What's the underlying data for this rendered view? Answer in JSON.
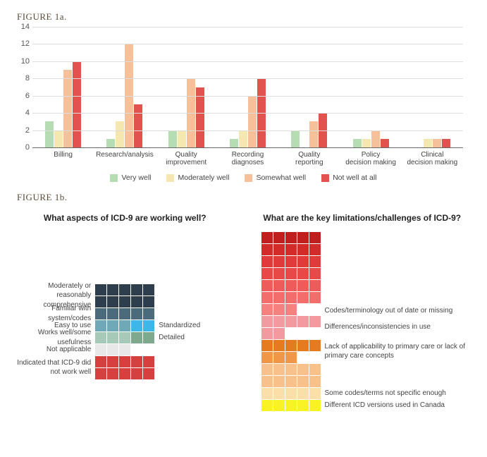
{
  "figure1a": {
    "title": "FIGURE 1a.",
    "type": "bar",
    "ylim": [
      0,
      14
    ],
    "ytick_step": 2,
    "grid_color": "#dddddd",
    "axis_color": "#666666",
    "label_fontsize": 10,
    "categories": [
      "Billing",
      "Research/analysis",
      "Quality improvement",
      "Recording diagnoses",
      "Quality reporting",
      "Policy decision making",
      "Clinical decision making"
    ],
    "series": [
      {
        "name": "Very well",
        "color": "#b6dcb3",
        "values": [
          3,
          1,
          2,
          1,
          2,
          1,
          0
        ]
      },
      {
        "name": "Moderately well",
        "color": "#f4e7b0",
        "values": [
          2,
          3,
          2,
          2,
          0,
          1,
          1
        ]
      },
      {
        "name": "Somewhat well",
        "color": "#f6c19a",
        "values": [
          9,
          12,
          8,
          6,
          3,
          2,
          1
        ]
      },
      {
        "name": "Not well at all",
        "color": "#e2524e",
        "values": [
          10,
          5,
          7,
          8,
          4,
          1,
          1
        ]
      }
    ]
  },
  "figure1b": {
    "title": "FIGURE 1b.",
    "cell_size": 16,
    "cols": 5,
    "left": {
      "question": "What aspects of ICD-9 are working well?",
      "segments": [
        {
          "label_left": "Moderately or reasonably comprehensive",
          "count": 10,
          "color": "#2f3e4d"
        },
        {
          "label_left": "Familiar with system/codes",
          "count": 5,
          "color": "#4b6b7c"
        },
        {
          "label_left": "Easy to use",
          "label_right": "Standardized",
          "count": 3,
          "right_count": 2,
          "color": "#6fa8b6",
          "right_color": "#3fb6e8"
        },
        {
          "label_left": "Works well/some usefulness",
          "label_right": "Detailed",
          "count": 3,
          "right_count": 2,
          "color": "#a6c9b8",
          "right_color": "#7fa98f"
        },
        {
          "label_left": "Not applicable",
          "count": 3,
          "color": "#e8e8e8"
        },
        {
          "label_left": "Indicated that ICD-9 did not work well",
          "count": 10,
          "color": "#d6403e"
        }
      ]
    },
    "right": {
      "question": "What are the key limitations/challenges of ICD-9?",
      "segments": [
        {
          "label_right": "Codes/terminology out of date or missing",
          "count": 33,
          "color_steps": [
            "#c11f1f",
            "#d32a2a",
            "#e03a3a",
            "#e84848",
            "#ef5a5a",
            "#f36d6d",
            "#f58080"
          ]
        },
        {
          "label_right": "Differences/inconsistencies in use",
          "count": 7,
          "color": "#f29aa0"
        },
        {
          "label_right": "Lack of applicability to primary care or lack of primary care concepts",
          "count": 8,
          "color_steps": [
            "#e67a1f",
            "#ef9746"
          ]
        },
        {
          "label_right": "",
          "count": 10,
          "color": "#f8c08a"
        },
        {
          "label_right": "Some codes/terms not specific enough",
          "count": 5,
          "color": "#fadfa8"
        },
        {
          "label_right": "Different ICD versions used in Canada",
          "count": 5,
          "color": "#f9f326"
        }
      ]
    }
  }
}
